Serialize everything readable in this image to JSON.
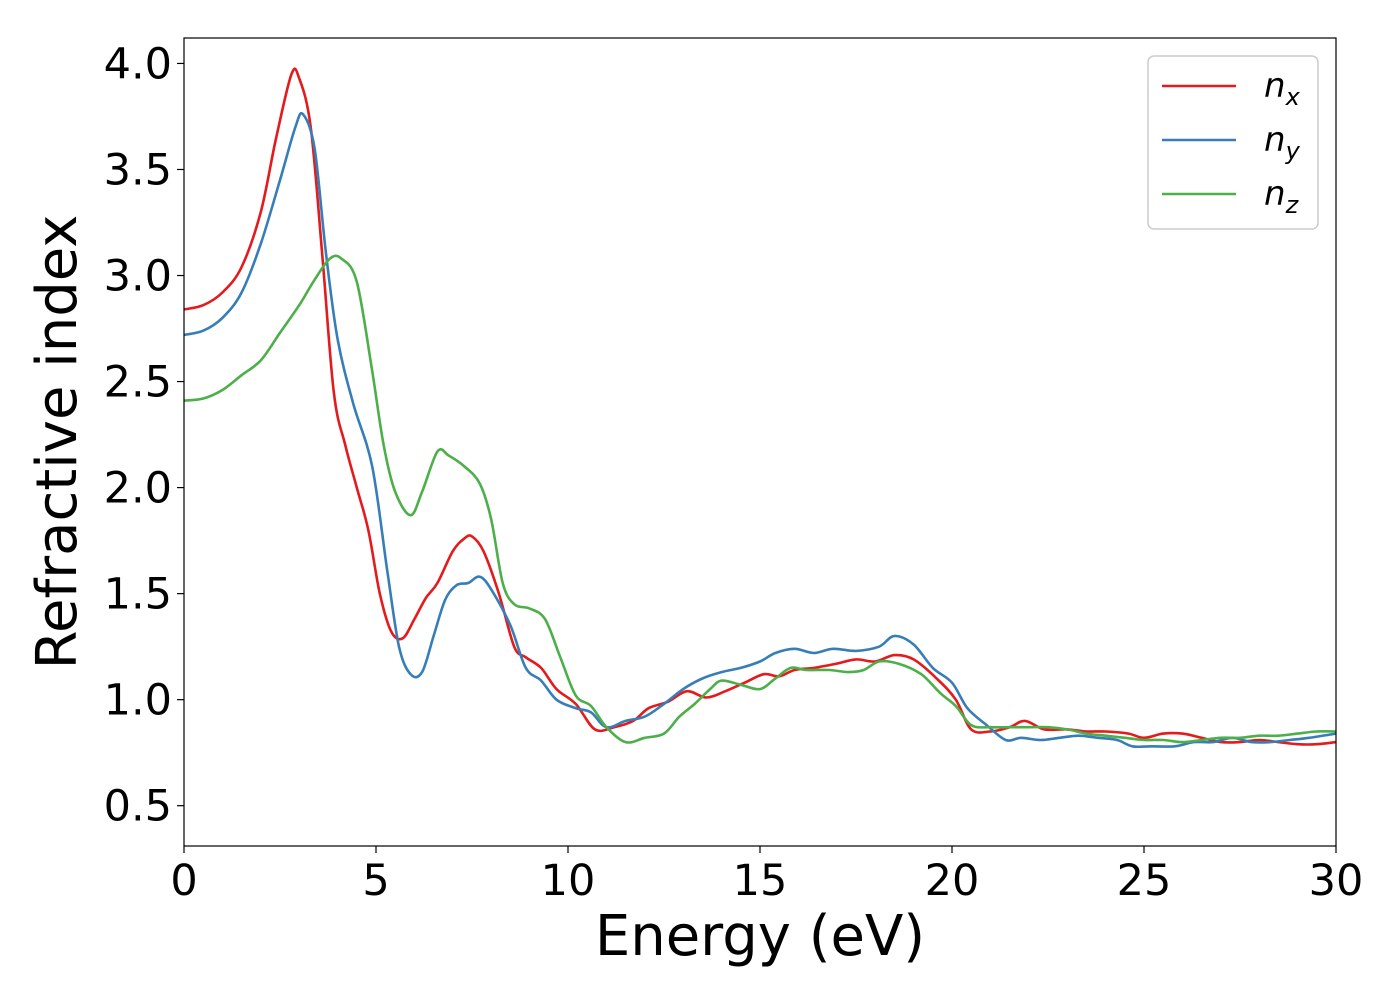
{
  "chart_data": {
    "type": "line",
    "xlabel": "Energy (eV)",
    "ylabel": "Refractive index",
    "xlim": [
      0,
      30
    ],
    "ylim": [
      0.31,
      4.12
    ],
    "xticks": [
      "0",
      "5",
      "10",
      "15",
      "20",
      "25",
      "30"
    ],
    "yticks": [
      "0.5",
      "1.0",
      "1.5",
      "2.0",
      "2.5",
      "3.0",
      "3.5",
      "4.0"
    ],
    "grid": false,
    "legend_position": "top-right",
    "series": [
      {
        "name": "n",
        "subscript": "x",
        "color": "#e41a1c",
        "points": [
          [
            0,
            2.84
          ],
          [
            0.5,
            2.86
          ],
          [
            1,
            2.92
          ],
          [
            1.5,
            3.04
          ],
          [
            2,
            3.3
          ],
          [
            2.4,
            3.65
          ],
          [
            2.8,
            3.95
          ],
          [
            3.0,
            3.93
          ],
          [
            3.3,
            3.7
          ],
          [
            3.6,
            3.1
          ],
          [
            3.9,
            2.45
          ],
          [
            4.2,
            2.2
          ],
          [
            4.5,
            2.0
          ],
          [
            4.8,
            1.8
          ],
          [
            5.1,
            1.5
          ],
          [
            5.4,
            1.32
          ],
          [
            5.7,
            1.29
          ],
          [
            6.0,
            1.38
          ],
          [
            6.3,
            1.48
          ],
          [
            6.6,
            1.55
          ],
          [
            7.0,
            1.7
          ],
          [
            7.3,
            1.76
          ],
          [
            7.5,
            1.77
          ],
          [
            7.8,
            1.7
          ],
          [
            8.2,
            1.5
          ],
          [
            8.6,
            1.25
          ],
          [
            8.9,
            1.2
          ],
          [
            9.3,
            1.15
          ],
          [
            9.7,
            1.05
          ],
          [
            10.2,
            0.98
          ],
          [
            10.7,
            0.86
          ],
          [
            11.2,
            0.87
          ],
          [
            11.7,
            0.9
          ],
          [
            12.1,
            0.96
          ],
          [
            12.6,
            0.99
          ],
          [
            13.1,
            1.04
          ],
          [
            13.6,
            1.01
          ],
          [
            14.1,
            1.04
          ],
          [
            14.6,
            1.08
          ],
          [
            15.1,
            1.12
          ],
          [
            15.5,
            1.11
          ],
          [
            15.9,
            1.14
          ],
          [
            16.4,
            1.15
          ],
          [
            17.0,
            1.17
          ],
          [
            17.5,
            1.19
          ],
          [
            18.0,
            1.18
          ],
          [
            18.5,
            1.21
          ],
          [
            19.0,
            1.19
          ],
          [
            19.6,
            1.1
          ],
          [
            20.1,
            1.0
          ],
          [
            20.5,
            0.86
          ],
          [
            21.0,
            0.85
          ],
          [
            21.5,
            0.87
          ],
          [
            21.9,
            0.9
          ],
          [
            22.4,
            0.86
          ],
          [
            23.0,
            0.86
          ],
          [
            23.5,
            0.85
          ],
          [
            24.0,
            0.85
          ],
          [
            24.6,
            0.84
          ],
          [
            25.0,
            0.82
          ],
          [
            25.5,
            0.84
          ],
          [
            26.0,
            0.84
          ],
          [
            26.5,
            0.82
          ],
          [
            27.0,
            0.8
          ],
          [
            27.5,
            0.8
          ],
          [
            28.0,
            0.81
          ],
          [
            28.5,
            0.8
          ],
          [
            29.0,
            0.79
          ],
          [
            29.5,
            0.79
          ],
          [
            30,
            0.8
          ]
        ]
      },
      {
        "name": "n",
        "subscript": "y",
        "color": "#377eb8",
        "points": [
          [
            0,
            2.72
          ],
          [
            0.5,
            2.74
          ],
          [
            1,
            2.8
          ],
          [
            1.5,
            2.92
          ],
          [
            2,
            3.15
          ],
          [
            2.5,
            3.45
          ],
          [
            2.9,
            3.7
          ],
          [
            3.1,
            3.76
          ],
          [
            3.4,
            3.6
          ],
          [
            3.7,
            3.1
          ],
          [
            4.0,
            2.7
          ],
          [
            4.4,
            2.4
          ],
          [
            4.9,
            2.1
          ],
          [
            5.3,
            1.6
          ],
          [
            5.6,
            1.25
          ],
          [
            5.9,
            1.12
          ],
          [
            6.2,
            1.13
          ],
          [
            6.5,
            1.3
          ],
          [
            6.8,
            1.47
          ],
          [
            7.1,
            1.54
          ],
          [
            7.4,
            1.55
          ],
          [
            7.7,
            1.58
          ],
          [
            8.0,
            1.52
          ],
          [
            8.5,
            1.35
          ],
          [
            8.9,
            1.15
          ],
          [
            9.3,
            1.09
          ],
          [
            9.7,
            1.0
          ],
          [
            10.2,
            0.96
          ],
          [
            10.6,
            0.94
          ],
          [
            11.0,
            0.87
          ],
          [
            11.5,
            0.9
          ],
          [
            12.0,
            0.92
          ],
          [
            12.5,
            0.98
          ],
          [
            13.0,
            1.05
          ],
          [
            13.5,
            1.1
          ],
          [
            14.0,
            1.13
          ],
          [
            14.5,
            1.15
          ],
          [
            15.0,
            1.18
          ],
          [
            15.4,
            1.22
          ],
          [
            15.9,
            1.24
          ],
          [
            16.4,
            1.22
          ],
          [
            16.9,
            1.24
          ],
          [
            17.5,
            1.23
          ],
          [
            18.1,
            1.25
          ],
          [
            18.5,
            1.3
          ],
          [
            19.0,
            1.26
          ],
          [
            19.5,
            1.15
          ],
          [
            20.0,
            1.08
          ],
          [
            20.4,
            0.96
          ],
          [
            20.9,
            0.88
          ],
          [
            21.4,
            0.81
          ],
          [
            21.8,
            0.82
          ],
          [
            22.3,
            0.81
          ],
          [
            22.8,
            0.82
          ],
          [
            23.3,
            0.83
          ],
          [
            23.8,
            0.82
          ],
          [
            24.3,
            0.81
          ],
          [
            24.7,
            0.78
          ],
          [
            25.2,
            0.78
          ],
          [
            25.8,
            0.78
          ],
          [
            26.3,
            0.8
          ],
          [
            26.8,
            0.8
          ],
          [
            27.3,
            0.82
          ],
          [
            27.8,
            0.8
          ],
          [
            28.3,
            0.8
          ],
          [
            28.8,
            0.81
          ],
          [
            29.3,
            0.82
          ],
          [
            30,
            0.84
          ]
        ]
      },
      {
        "name": "n",
        "subscript": "z",
        "color": "#4daf4a",
        "points": [
          [
            0,
            2.41
          ],
          [
            0.5,
            2.42
          ],
          [
            1,
            2.46
          ],
          [
            1.5,
            2.53
          ],
          [
            2,
            2.6
          ],
          [
            2.5,
            2.73
          ],
          [
            3.0,
            2.86
          ],
          [
            3.4,
            2.98
          ],
          [
            3.8,
            3.08
          ],
          [
            4.1,
            3.08
          ],
          [
            4.5,
            2.97
          ],
          [
            4.9,
            2.55
          ],
          [
            5.2,
            2.2
          ],
          [
            5.5,
            1.98
          ],
          [
            5.9,
            1.87
          ],
          [
            6.2,
            1.98
          ],
          [
            6.6,
            2.17
          ],
          [
            6.9,
            2.15
          ],
          [
            7.3,
            2.1
          ],
          [
            7.7,
            2.02
          ],
          [
            8.0,
            1.85
          ],
          [
            8.3,
            1.55
          ],
          [
            8.6,
            1.45
          ],
          [
            9.0,
            1.43
          ],
          [
            9.4,
            1.38
          ],
          [
            9.8,
            1.2
          ],
          [
            10.2,
            1.02
          ],
          [
            10.6,
            0.97
          ],
          [
            11.0,
            0.87
          ],
          [
            11.5,
            0.8
          ],
          [
            12.0,
            0.82
          ],
          [
            12.5,
            0.84
          ],
          [
            12.9,
            0.92
          ],
          [
            13.3,
            0.98
          ],
          [
            13.7,
            1.05
          ],
          [
            14.0,
            1.09
          ],
          [
            14.5,
            1.07
          ],
          [
            15.0,
            1.05
          ],
          [
            15.4,
            1.1
          ],
          [
            15.8,
            1.15
          ],
          [
            16.2,
            1.14
          ],
          [
            16.8,
            1.14
          ],
          [
            17.3,
            1.13
          ],
          [
            17.7,
            1.14
          ],
          [
            18.1,
            1.18
          ],
          [
            18.6,
            1.17
          ],
          [
            19.2,
            1.12
          ],
          [
            19.7,
            1.03
          ],
          [
            20.1,
            0.97
          ],
          [
            20.5,
            0.88
          ],
          [
            21.0,
            0.87
          ],
          [
            21.5,
            0.87
          ],
          [
            22.0,
            0.87
          ],
          [
            22.5,
            0.87
          ],
          [
            23.0,
            0.86
          ],
          [
            23.5,
            0.84
          ],
          [
            24.0,
            0.83
          ],
          [
            24.5,
            0.82
          ],
          [
            25.0,
            0.81
          ],
          [
            25.5,
            0.81
          ],
          [
            26.0,
            0.8
          ],
          [
            26.5,
            0.81
          ],
          [
            27.0,
            0.82
          ],
          [
            27.5,
            0.82
          ],
          [
            28.0,
            0.83
          ],
          [
            28.5,
            0.83
          ],
          [
            29.0,
            0.84
          ],
          [
            29.5,
            0.85
          ],
          [
            30,
            0.85
          ]
        ]
      }
    ]
  }
}
